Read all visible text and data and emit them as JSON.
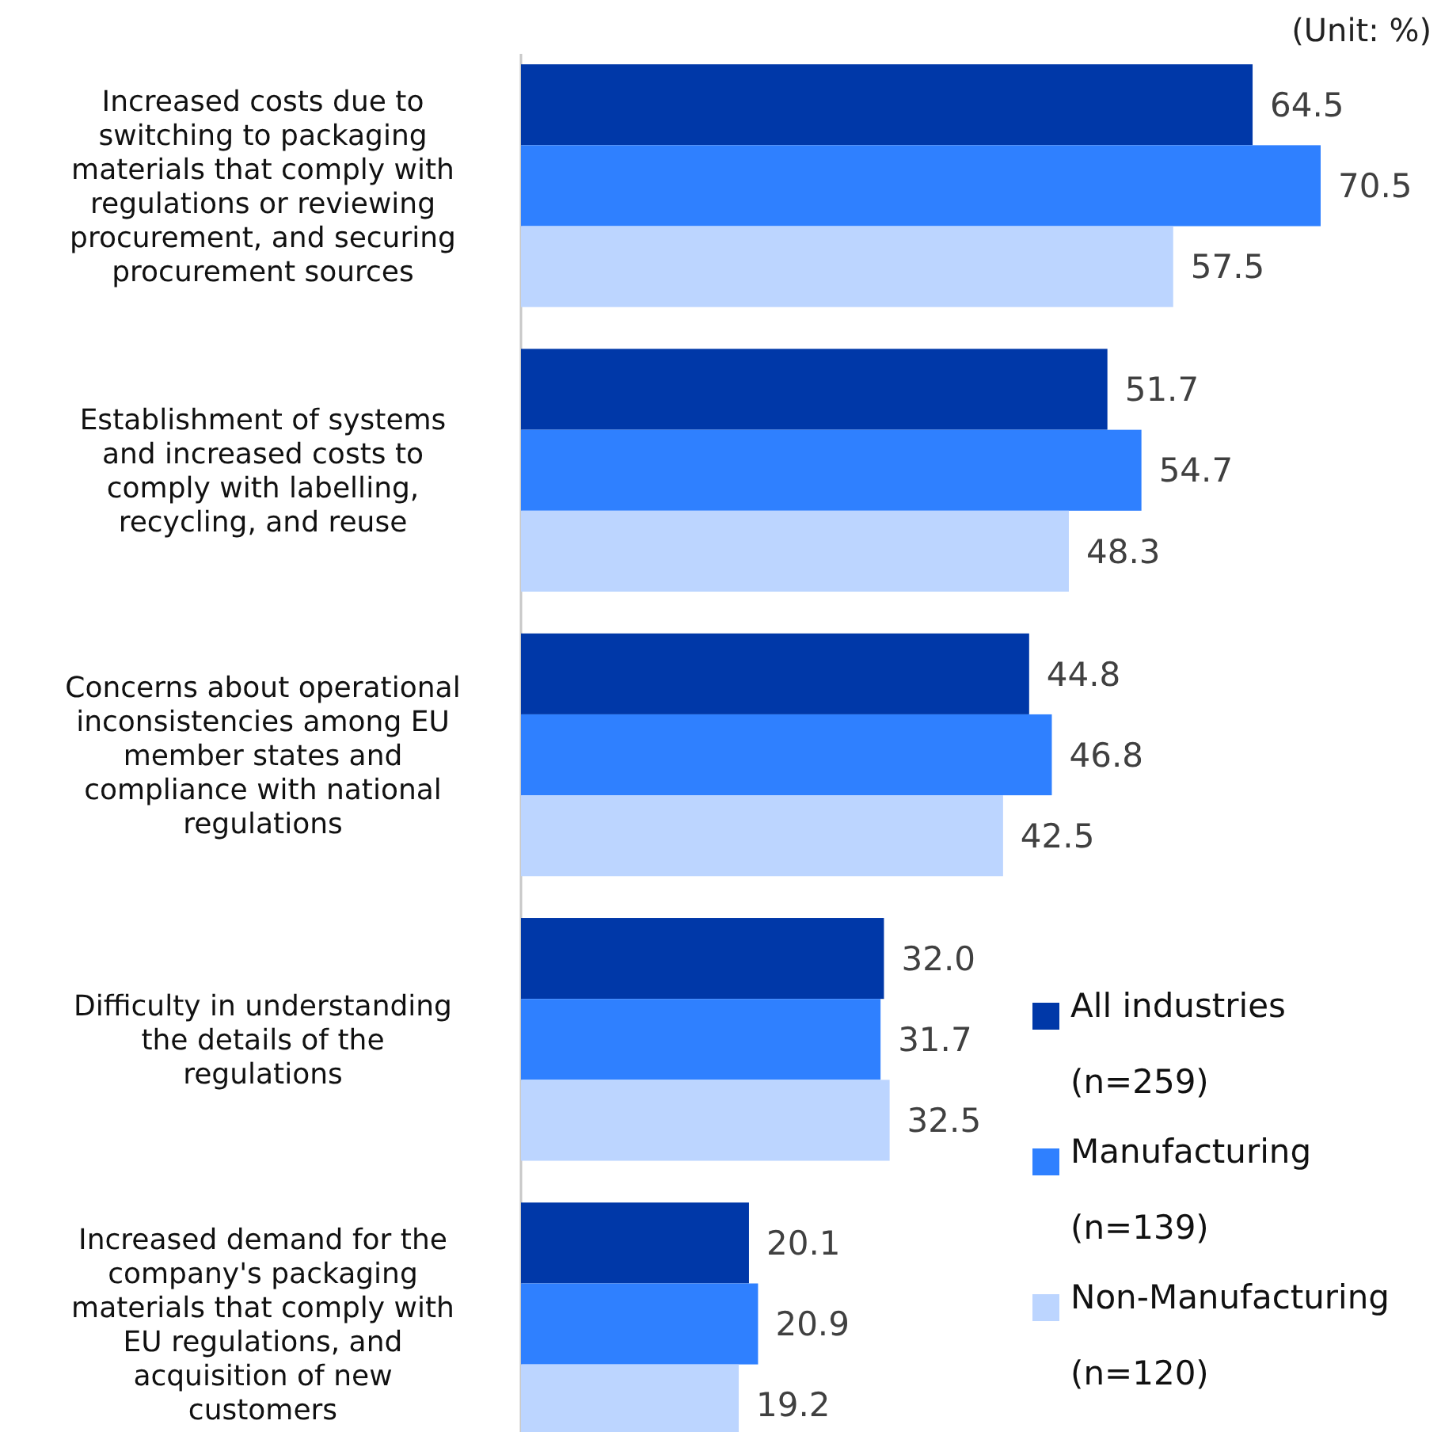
{
  "chart_data": {
    "type": "bar",
    "orientation": "horizontal",
    "categories": [
      "Increased costs due to switching to packaging materials that comply with regulations or reviewing procurement, and securing procurement sources",
      "Establishment of systems and increased costs to comply with labelling, recycling, and reuse",
      "Concerns about operational inconsistencies among EU member states and compliance with national regulations",
      "Difficulty in understanding the details of the regulations",
      "Increased demand for the company's packaging materials that comply with EU regulations, and acquisition of new customers"
    ],
    "series": [
      {
        "name": "All industries (n=259)",
        "color": "#0038a8",
        "values": [
          64.5,
          51.7,
          44.8,
          32.0,
          20.1
        ],
        "value_labels": [
          "64.5",
          "51.7",
          "44.8",
          "32.0",
          "20.1"
        ]
      },
      {
        "name": "Manufacturing (n=139)",
        "color": "#2f80ff",
        "values": [
          70.5,
          54.7,
          46.8,
          31.7,
          20.9
        ],
        "value_labels": [
          "70.5",
          "54.7",
          "46.8",
          "31.7",
          "20.9"
        ]
      },
      {
        "name": "Non-Manufacturing (n=120)",
        "color": "#bcd5ff",
        "values": [
          57.5,
          48.3,
          42.5,
          32.5,
          19.2
        ],
        "value_labels": [
          "57.5",
          "48.3",
          "42.5",
          "32.5",
          "19.2"
        ]
      }
    ],
    "legend": "bottom right",
    "annotations": [
      "(Unit: %)"
    ]
  }
}
